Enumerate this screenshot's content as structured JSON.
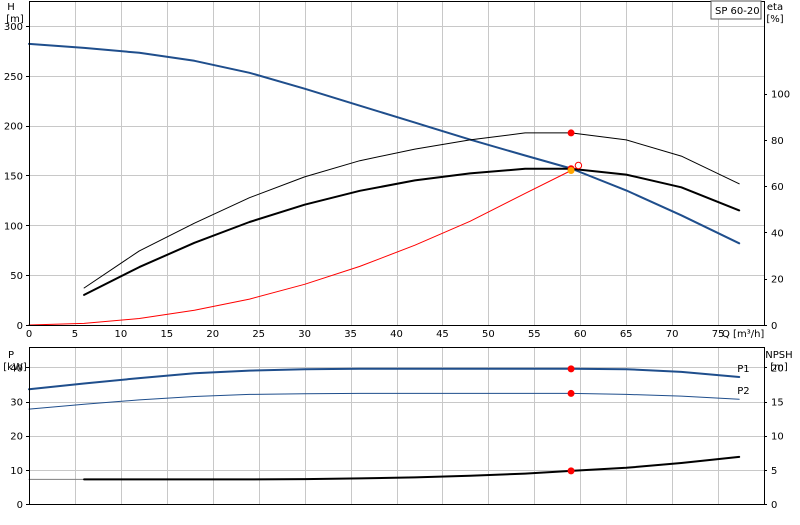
{
  "model_label": "SP 60-20",
  "chart_data": [
    {
      "type": "line",
      "name": "head-efficiency",
      "xlabel": "Q [m³/h]",
      "xlim": [
        0,
        80
      ],
      "x_ticks": [
        0,
        5,
        10,
        15,
        20,
        25,
        30,
        35,
        40,
        45,
        50,
        55,
        60,
        65,
        70,
        75
      ],
      "ylabel_left": [
        "H",
        "[m]"
      ],
      "ylim_left": [
        0,
        325
      ],
      "y_ticks_left": [
        0,
        50,
        100,
        150,
        200,
        250,
        300
      ],
      "ylabel_right": [
        "eta",
        "[%]"
      ],
      "ylim_right": [
        0,
        140
      ],
      "y_ticks_right": [
        0,
        20,
        40,
        60,
        80,
        100
      ],
      "grid": true,
      "series": [
        {
          "key": "head",
          "axis": "left",
          "color": "#1f4e8c",
          "width": 2,
          "x": [
            0,
            6,
            12,
            18,
            24,
            30,
            36,
            42,
            48,
            54,
            59,
            65,
            71,
            77.3
          ],
          "y": [
            282,
            278,
            273,
            265,
            253,
            237,
            220,
            203,
            186,
            170,
            157,
            135,
            110,
            82
          ]
        },
        {
          "key": "eta_pump",
          "axis": "right",
          "color": "#000000",
          "width": 1,
          "x": [
            6,
            12,
            18,
            24,
            30,
            36,
            42,
            48,
            54,
            59,
            65,
            71,
            77.3
          ],
          "y": [
            16,
            32,
            44,
            55,
            64,
            71,
            76,
            80,
            83,
            83,
            80,
            73,
            61
          ]
        },
        {
          "key": "eta_total",
          "axis": "right",
          "color": "#000000",
          "width": 2,
          "x": [
            6,
            12,
            18,
            24,
            30,
            36,
            42,
            48,
            54,
            59,
            65,
            71,
            77.3
          ],
          "y": [
            13,
            25,
            35.5,
            44.5,
            52,
            58,
            62.5,
            65.5,
            67.5,
            67.5,
            65,
            59.5,
            49.5
          ]
        },
        {
          "key": "system",
          "axis": "left",
          "color": "#ff0000",
          "width": 1,
          "x": [
            0,
            6,
            12,
            18,
            24,
            30,
            36,
            42,
            48,
            54,
            59
          ],
          "y": [
            0,
            1.6,
            6.5,
            14.7,
            26,
            40.8,
            58.8,
            80,
            104,
            132,
            155
          ]
        }
      ],
      "markers": [
        {
          "axis": "right",
          "x": 59,
          "y": 83,
          "color": "#ff0000",
          "style": "dot"
        },
        {
          "axis": "right",
          "x": 59,
          "y": 67.5,
          "color": "#ff0000",
          "style": "dot"
        },
        {
          "axis": "left",
          "x": 59,
          "y": 155,
          "color": "#ffa500",
          "style": "dot"
        },
        {
          "axis": "left",
          "x": 59.8,
          "y": 160,
          "color": "#ff0000",
          "style": "ring"
        }
      ]
    },
    {
      "type": "line",
      "name": "power-npsh",
      "xlim": [
        0,
        80
      ],
      "ylabel_left": [
        "P",
        "[kW]"
      ],
      "ylim_left": [
        0,
        46
      ],
      "y_ticks_left": [
        0,
        10,
        20,
        30,
        40
      ],
      "ylabel_right": [
        "NPSH",
        "[m]"
      ],
      "ylim_right": [
        0,
        23
      ],
      "y_ticks_right": [
        0,
        5,
        10,
        15,
        20
      ],
      "grid": true,
      "series": [
        {
          "key": "P1",
          "axis": "left",
          "color": "#1f4e8c",
          "width": 2,
          "label": "P1",
          "x": [
            0,
            6,
            12,
            18,
            24,
            30,
            36,
            42,
            48,
            54,
            59,
            65,
            71,
            77.3
          ],
          "y": [
            33.6,
            35.3,
            36.9,
            38.3,
            39.1,
            39.5,
            39.6,
            39.6,
            39.6,
            39.6,
            39.6,
            39.5,
            38.7,
            37.2
          ]
        },
        {
          "key": "P2",
          "axis": "left",
          "color": "#1f4e8c",
          "width": 1,
          "label": "P2",
          "x": [
            0,
            6,
            12,
            18,
            24,
            30,
            36,
            42,
            48,
            54,
            59,
            65,
            71,
            77.3
          ],
          "y": [
            27.8,
            29.2,
            30.5,
            31.5,
            32.1,
            32.3,
            32.4,
            32.4,
            32.4,
            32.4,
            32.4,
            32.1,
            31.6,
            30.7
          ]
        },
        {
          "key": "npsh_ext",
          "axis": "right",
          "color": "#7f7f7f",
          "width": 1,
          "x": [
            0,
            6
          ],
          "y": [
            3.6,
            3.6
          ]
        },
        {
          "key": "npsh",
          "axis": "right",
          "color": "#000000",
          "width": 2,
          "x": [
            6,
            12,
            18,
            24,
            30,
            36,
            42,
            48,
            54,
            59,
            65,
            71,
            77.3
          ],
          "y": [
            3.6,
            3.6,
            3.6,
            3.6,
            3.65,
            3.75,
            3.9,
            4.15,
            4.45,
            4.85,
            5.3,
            6.0,
            6.9
          ]
        }
      ],
      "markers": [
        {
          "axis": "left",
          "x": 59,
          "y": 39.6,
          "color": "#ff0000",
          "style": "dot"
        },
        {
          "axis": "left",
          "x": 59,
          "y": 32.4,
          "color": "#ff0000",
          "style": "dot"
        },
        {
          "axis": "right",
          "x": 59,
          "y": 4.85,
          "color": "#ff0000",
          "style": "dot"
        }
      ]
    }
  ]
}
